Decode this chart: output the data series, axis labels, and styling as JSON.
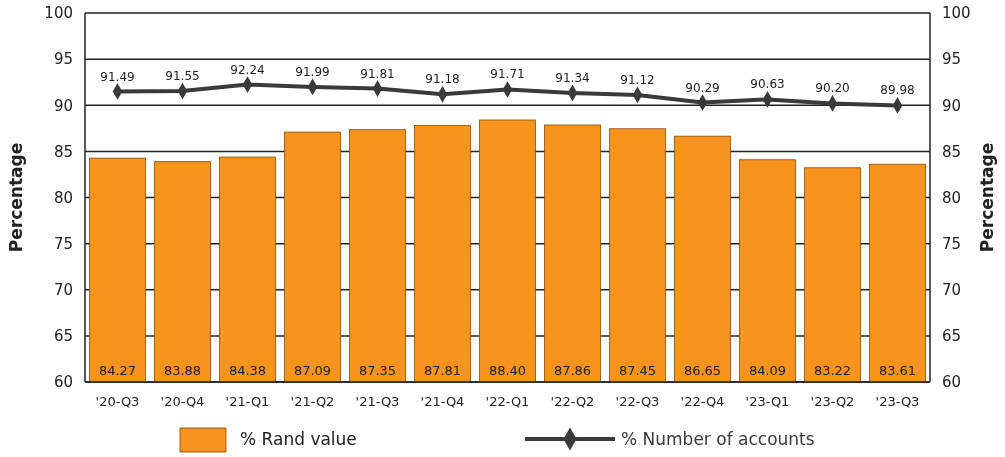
{
  "chart_data": {
    "type": "bar",
    "ylabel": "Percentage",
    "y2label": "Percentage",
    "categories": [
      "'20-Q3",
      "'20-Q4",
      "'21-Q1",
      "'21-Q2",
      "'21-Q3",
      "'21-Q4",
      "'22-Q1",
      "'22-Q2",
      "'22-Q3",
      "'22-Q4",
      "'23-Q1",
      "'23-Q2",
      "'23-Q3"
    ],
    "series": [
      {
        "name": "% Rand value",
        "color": "#f7941d",
        "values": [
          84.27,
          83.88,
          84.38,
          87.09,
          87.35,
          87.81,
          88.4,
          87.86,
          87.45,
          86.65,
          84.09,
          83.22,
          83.61
        ],
        "value_labels": [
          "84.27",
          "83.88",
          "84.38",
          "87.09",
          "87.35",
          "87.81",
          "88.40",
          "87.86",
          "87.45",
          "86.65",
          "84.09",
          "83.22",
          "83.61"
        ]
      },
      {
        "name": "% Number of accounts",
        "type": "line",
        "color": "#3a3a3a",
        "marker": "diamond",
        "values": [
          91.49,
          91.55,
          92.24,
          91.99,
          91.81,
          91.18,
          91.71,
          91.34,
          91.12,
          90.29,
          90.63,
          90.2,
          89.98
        ],
        "value_labels": [
          "91.49",
          "91.55",
          "92.24",
          "91.99",
          "91.81",
          "91.18",
          "91.71",
          "91.34",
          "91.12",
          "90.29",
          "90.63",
          "90.20",
          "89.98"
        ]
      }
    ],
    "ylim": [
      60,
      100
    ],
    "yticks": [
      60,
      65,
      70,
      75,
      80,
      85,
      90,
      95,
      100
    ],
    "y2lim": [
      60,
      100
    ],
    "y2ticks": [
      60,
      65,
      70,
      75,
      80,
      85,
      90,
      95,
      100
    ],
    "grid": "y",
    "legend": "bottom"
  }
}
